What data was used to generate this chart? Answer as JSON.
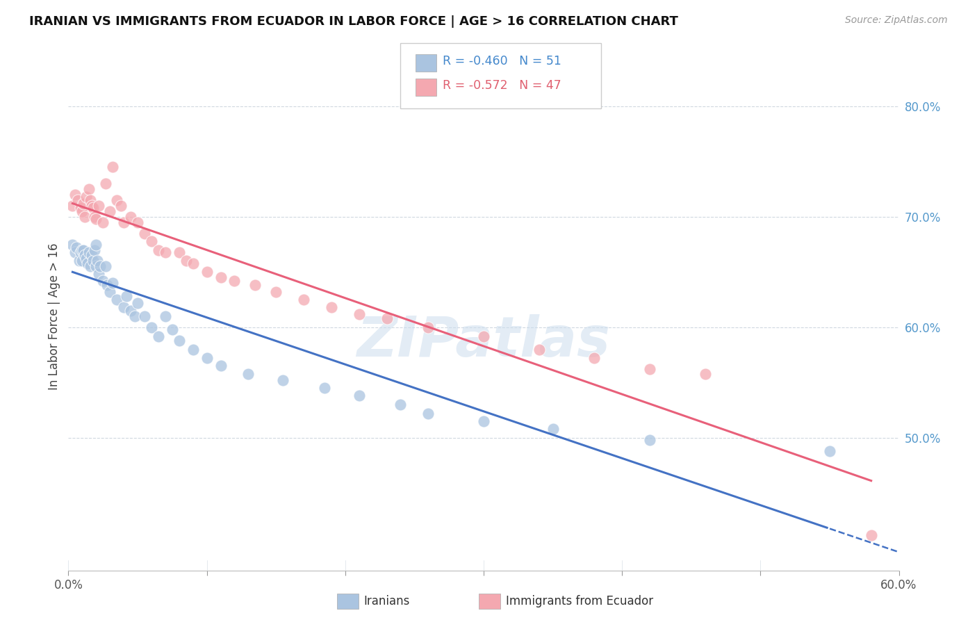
{
  "title": "IRANIAN VS IMMIGRANTS FROM ECUADOR IN LABOR FORCE | AGE > 16 CORRELATION CHART",
  "source_text": "Source: ZipAtlas.com",
  "ylabel": "In Labor Force | Age > 16",
  "R_iranian": -0.46,
  "N_iranian": 51,
  "R_ecuador": -0.572,
  "N_ecuador": 47,
  "blue_color": "#aac4e0",
  "pink_color": "#f4a8b0",
  "blue_line_color": "#4472c4",
  "pink_line_color": "#e8607a",
  "xmin": 0.0,
  "xmax": 0.6,
  "ymin": 0.38,
  "ymax": 0.84,
  "right_yticks": [
    0.8,
    0.7,
    0.6,
    0.5
  ],
  "right_yticklabels": [
    "80.0%",
    "70.0%",
    "60.0%",
    "50.0%"
  ],
  "iranians_x": [
    0.003,
    0.005,
    0.006,
    0.008,
    0.009,
    0.01,
    0.01,
    0.011,
    0.012,
    0.013,
    0.014,
    0.015,
    0.016,
    0.017,
    0.018,
    0.019,
    0.02,
    0.02,
    0.021,
    0.022,
    0.023,
    0.025,
    0.027,
    0.028,
    0.03,
    0.032,
    0.035,
    0.04,
    0.042,
    0.045,
    0.048,
    0.05,
    0.055,
    0.06,
    0.065,
    0.07,
    0.075,
    0.08,
    0.09,
    0.1,
    0.11,
    0.13,
    0.155,
    0.185,
    0.21,
    0.24,
    0.26,
    0.3,
    0.35,
    0.42,
    0.55
  ],
  "iranians_y": [
    0.675,
    0.668,
    0.672,
    0.66,
    0.668,
    0.67,
    0.66,
    0.67,
    0.665,
    0.662,
    0.658,
    0.668,
    0.655,
    0.665,
    0.66,
    0.67,
    0.675,
    0.655,
    0.66,
    0.648,
    0.655,
    0.642,
    0.655,
    0.638,
    0.632,
    0.64,
    0.625,
    0.618,
    0.628,
    0.615,
    0.61,
    0.622,
    0.61,
    0.6,
    0.592,
    0.61,
    0.598,
    0.588,
    0.58,
    0.572,
    0.565,
    0.558,
    0.552,
    0.545,
    0.538,
    0.53,
    0.522,
    0.515,
    0.508,
    0.498,
    0.488
  ],
  "ecuador_x": [
    0.003,
    0.005,
    0.007,
    0.009,
    0.01,
    0.011,
    0.012,
    0.013,
    0.015,
    0.016,
    0.017,
    0.018,
    0.019,
    0.02,
    0.022,
    0.025,
    0.027,
    0.03,
    0.032,
    0.035,
    0.038,
    0.04,
    0.045,
    0.05,
    0.055,
    0.06,
    0.065,
    0.07,
    0.08,
    0.085,
    0.09,
    0.1,
    0.11,
    0.12,
    0.135,
    0.15,
    0.17,
    0.19,
    0.21,
    0.23,
    0.26,
    0.3,
    0.34,
    0.38,
    0.42,
    0.46,
    0.58
  ],
  "ecuador_y": [
    0.71,
    0.72,
    0.715,
    0.708,
    0.705,
    0.712,
    0.7,
    0.718,
    0.725,
    0.715,
    0.71,
    0.708,
    0.7,
    0.698,
    0.71,
    0.695,
    0.73,
    0.705,
    0.745,
    0.715,
    0.71,
    0.695,
    0.7,
    0.695,
    0.685,
    0.678,
    0.67,
    0.668,
    0.668,
    0.66,
    0.658,
    0.65,
    0.645,
    0.642,
    0.638,
    0.632,
    0.625,
    0.618,
    0.612,
    0.608,
    0.6,
    0.592,
    0.58,
    0.572,
    0.562,
    0.558,
    0.412
  ],
  "blue_intercept": 0.67,
  "blue_slope": -0.34,
  "pink_intercept": 0.706,
  "pink_slope": -0.34
}
